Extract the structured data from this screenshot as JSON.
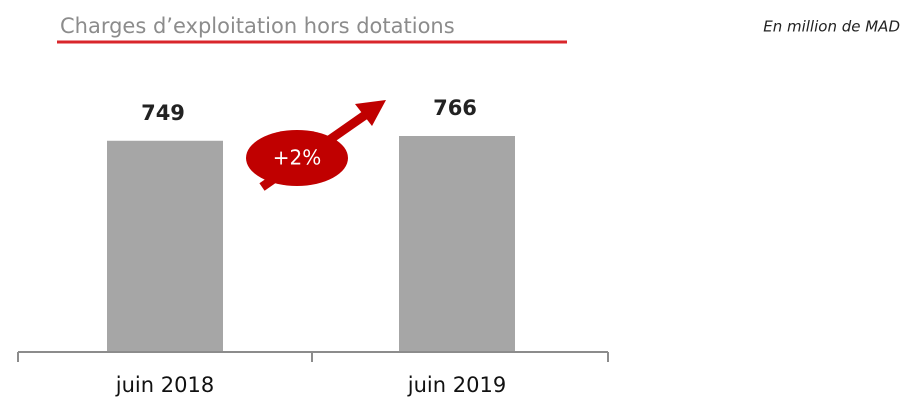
{
  "chart_data": {
    "type": "bar",
    "title": "Charges d’exploitation hors dotations",
    "subtitle": "En million de MAD",
    "categories": [
      "juin 2018",
      "juin 2019"
    ],
    "values": [
      749,
      766
    ],
    "color": "#a6a6a6",
    "annotation": "+2%",
    "annotation_color": "#c00000"
  }
}
